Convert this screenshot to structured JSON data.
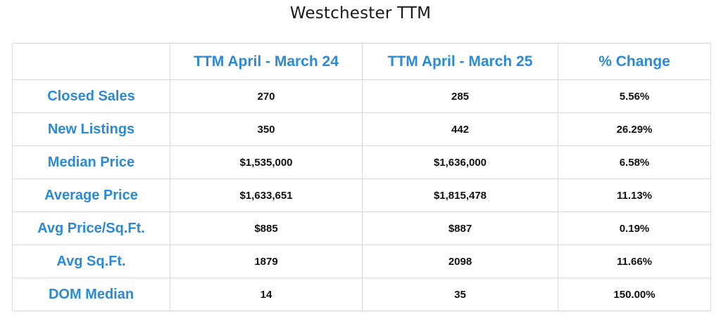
{
  "chart_data": {
    "type": "table",
    "title": "Westchester TTM",
    "columns": [
      "",
      "TTM April - March 24",
      "TTM April - March 25",
      "% Change"
    ],
    "rows": [
      {
        "label": "Closed Sales",
        "values": [
          "270",
          "285",
          "5.56%"
        ]
      },
      {
        "label": "New Listings",
        "values": [
          "350",
          "442",
          "26.29%"
        ]
      },
      {
        "label": "Median Price",
        "values": [
          "$1,535,000",
          "$1,636,000",
          "6.58%"
        ]
      },
      {
        "label": "Average Price",
        "values": [
          "$1,633,651",
          "$1,815,478",
          "11.13%"
        ]
      },
      {
        "label": "Avg Price/Sq.Ft.",
        "values": [
          "$885",
          "$887",
          "0.19%"
        ]
      },
      {
        "label": "Avg Sq.Ft.",
        "values": [
          "1879",
          "2098",
          "11.66%"
        ]
      },
      {
        "label": "DOM Median",
        "values": [
          "14",
          "35",
          "150.00%"
        ]
      }
    ],
    "colors": {
      "header_text": "#2a8ad6",
      "row_label_text": "#2a8ad6",
      "value_text": "#111111",
      "grid": "#d9d9d9"
    }
  }
}
